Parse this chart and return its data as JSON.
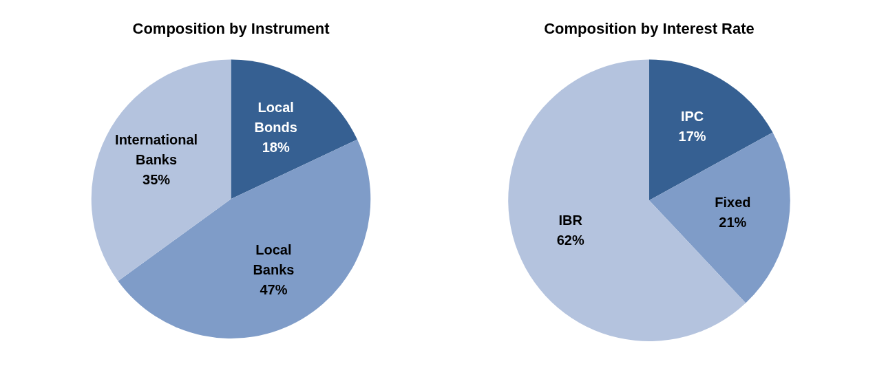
{
  "chart_data": [
    {
      "type": "pie",
      "title": "Composition by Instrument",
      "categories": [
        "Local Bonds",
        "Local Banks",
        "International Banks"
      ],
      "values": [
        18,
        47,
        35
      ],
      "colors": [
        "#366092",
        "#7f9cc8",
        "#b4c3de"
      ],
      "value_labels": [
        "18%",
        "47%",
        "35%"
      ],
      "legend": false
    },
    {
      "type": "pie",
      "title": "Composition by Interest Rate",
      "categories": [
        "IPC",
        "Fixed",
        "IBR"
      ],
      "values": [
        17,
        21,
        62
      ],
      "colors": [
        "#366092",
        "#7f9cc8",
        "#b4c3de"
      ],
      "value_labels": [
        "17%",
        "21%",
        "62%"
      ],
      "legend": false
    }
  ]
}
